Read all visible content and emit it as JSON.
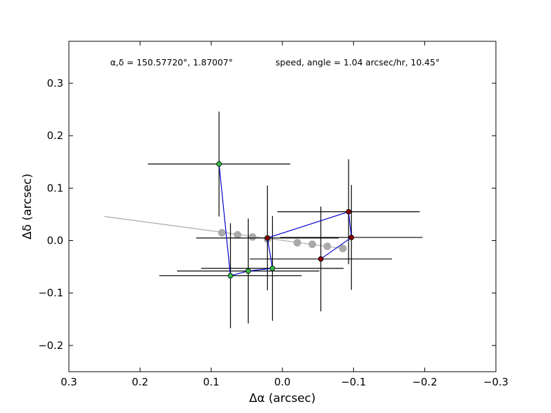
{
  "chart_data": {
    "type": "scatter",
    "title": "",
    "xlabel": "Δα (arcsec)",
    "ylabel": "Δδ (arcsec)",
    "xlim": [
      0.3,
      -0.3
    ],
    "ylim": [
      -0.25,
      0.38
    ],
    "x_inverted": true,
    "grid": false,
    "x_ticks": [
      0.3,
      0.2,
      0.1,
      0.0,
      -0.1,
      -0.2,
      -0.3
    ],
    "x_tick_labels": [
      "0.3",
      "0.2",
      "0.1",
      "0.0",
      "−0.1",
      "−0.2",
      "−0.3"
    ],
    "y_ticks": [
      -0.2,
      -0.1,
      0.0,
      0.1,
      0.2,
      0.3
    ],
    "y_tick_labels": [
      "−0.2",
      "−0.1",
      "0.0",
      "0.1",
      "0.2",
      "0.3"
    ],
    "annotations": [
      {
        "text": "α,δ = 150.57720°, 1.87007°"
      },
      {
        "text": "speed, angle = 1.04 arcsec/hr, 10.45°"
      }
    ],
    "series": [
      {
        "type": "line",
        "color": "#aaaaaa",
        "x": [
          0.25,
          -0.09
        ],
        "y": [
          0.046,
          -0.016
        ]
      },
      {
        "type": "scatter",
        "color": "#aaaaaa",
        "x": [
          0.085,
          0.063,
          0.042,
          0.021,
          -0.021,
          -0.042,
          -0.063,
          -0.085
        ],
        "y": [
          0.015,
          0.011,
          0.007,
          0.003,
          -0.004,
          -0.007,
          -0.011,
          -0.015
        ]
      },
      {
        "type": "errorbar",
        "line_color": "#0000cc",
        "points": [
          {
            "x": 0.089,
            "y": 0.146,
            "xerr": 0.1,
            "yerr": 0.1,
            "color": "#33bb44"
          },
          {
            "x": 0.073,
            "y": -0.067,
            "xerr": 0.1,
            "yerr": 0.1,
            "color": "#33bb44"
          },
          {
            "x": 0.048,
            "y": -0.058,
            "xerr": 0.1,
            "yerr": 0.1,
            "color": "#33bb44"
          },
          {
            "x": 0.014,
            "y": -0.053,
            "xerr": 0.1,
            "yerr": 0.1,
            "color": "#33bb44"
          },
          {
            "x": 0.021,
            "y": 0.005,
            "xerr": 0.1,
            "yerr": 0.1,
            "color": "#8b0000"
          },
          {
            "x": -0.093,
            "y": 0.055,
            "xerr": 0.1,
            "yerr": 0.1,
            "color": "#8b0000"
          },
          {
            "x": -0.097,
            "y": 0.006,
            "xerr": 0.1,
            "yerr": 0.1,
            "color": "#8b0000"
          },
          {
            "x": -0.054,
            "y": -0.035,
            "xerr": 0.1,
            "yerr": 0.1,
            "color": "#8b0000"
          }
        ]
      }
    ]
  }
}
